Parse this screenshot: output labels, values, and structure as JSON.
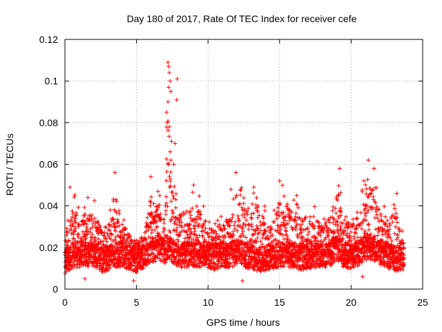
{
  "chart_data": {
    "type": "scatter",
    "title": "Day 180 of 2017, Rate Of TEC Index for receiver cefe",
    "xlabel": "GPS time / hours",
    "ylabel": "ROTI / TECUs",
    "xlim": [
      0,
      25
    ],
    "ylim": [
      0,
      0.12
    ],
    "grid": true,
    "marker": "+",
    "color": "#ff0000",
    "xticks": [
      0,
      5,
      10,
      15,
      20,
      25
    ],
    "xtick_labels": [
      "0",
      "5",
      "10",
      "15",
      "20",
      "25"
    ],
    "yticks": [
      0,
      0.02,
      0.04,
      0.06,
      0.08,
      0.1,
      0.12
    ],
    "ytick_labels": [
      "0",
      "0.02",
      "0.04",
      "0.06",
      "0.08",
      "0.1",
      "0.12"
    ],
    "envelope": {
      "description": "approximate ROTI profile read from the dense scatter (hour, typical baseline, upper envelope)",
      "hours": [
        0,
        0.5,
        1,
        1.5,
        2,
        2.5,
        3,
        3.5,
        4,
        4.5,
        5,
        5.5,
        6,
        6.5,
        7,
        7.2,
        7.5,
        8,
        8.5,
        9,
        9.5,
        10,
        10.5,
        11,
        11.5,
        12,
        12.5,
        13,
        13.5,
        14,
        14.5,
        15,
        15.5,
        16,
        16.5,
        17,
        17.5,
        18,
        18.5,
        19,
        19.5,
        20,
        20.5,
        21,
        21.5,
        22,
        22.5,
        23,
        23.5
      ],
      "baseline": [
        0.013,
        0.016,
        0.016,
        0.017,
        0.016,
        0.014,
        0.015,
        0.016,
        0.017,
        0.015,
        0.014,
        0.016,
        0.018,
        0.02,
        0.018,
        0.02,
        0.018,
        0.016,
        0.016,
        0.017,
        0.016,
        0.016,
        0.015,
        0.017,
        0.016,
        0.018,
        0.017,
        0.015,
        0.014,
        0.015,
        0.015,
        0.017,
        0.016,
        0.016,
        0.015,
        0.016,
        0.016,
        0.016,
        0.017,
        0.02,
        0.016,
        0.016,
        0.017,
        0.02,
        0.02,
        0.018,
        0.016,
        0.015,
        0.014
      ],
      "upper": [
        0.03,
        0.049,
        0.04,
        0.042,
        0.044,
        0.035,
        0.035,
        0.056,
        0.036,
        0.03,
        0.025,
        0.03,
        0.054,
        0.047,
        0.044,
        0.109,
        0.07,
        0.045,
        0.04,
        0.05,
        0.045,
        0.035,
        0.033,
        0.04,
        0.04,
        0.056,
        0.046,
        0.045,
        0.049,
        0.04,
        0.035,
        0.052,
        0.048,
        0.046,
        0.04,
        0.038,
        0.04,
        0.037,
        0.04,
        0.058,
        0.045,
        0.035,
        0.04,
        0.062,
        0.058,
        0.045,
        0.04,
        0.046,
        0.03
      ]
    },
    "highlights": [
      {
        "x": 7.2,
        "y": 0.109
      },
      {
        "x": 7.25,
        "y": 0.107
      },
      {
        "x": 7.3,
        "y": 0.104
      },
      {
        "x": 7.35,
        "y": 0.1
      },
      {
        "x": 7.25,
        "y": 0.097
      },
      {
        "x": 7.4,
        "y": 0.095
      },
      {
        "x": 7.85,
        "y": 0.101
      },
      {
        "x": 7.8,
        "y": 0.091
      },
      {
        "x": 7.2,
        "y": 0.09
      },
      {
        "x": 7.1,
        "y": 0.085
      },
      {
        "x": 7.15,
        "y": 0.08
      },
      {
        "x": 7.3,
        "y": 0.078
      },
      {
        "x": 7.45,
        "y": 0.071
      },
      {
        "x": 7.7,
        "y": 0.07
      },
      {
        "x": 7.35,
        "y": 0.066
      },
      {
        "x": 7.4,
        "y": 0.062
      },
      {
        "x": 7.6,
        "y": 0.06
      },
      {
        "x": 3.5,
        "y": 0.056
      },
      {
        "x": 6.0,
        "y": 0.054
      },
      {
        "x": 11.95,
        "y": 0.056
      },
      {
        "x": 15.0,
        "y": 0.052
      },
      {
        "x": 19.2,
        "y": 0.058
      },
      {
        "x": 21.2,
        "y": 0.062
      },
      {
        "x": 21.6,
        "y": 0.058
      },
      {
        "x": 9.0,
        "y": 0.05
      },
      {
        "x": 0.35,
        "y": 0.049
      },
      {
        "x": 1.6,
        "y": 0.044
      },
      {
        "x": 6.5,
        "y": 0.047
      },
      {
        "x": 11.6,
        "y": 0.048
      },
      {
        "x": 13.2,
        "y": 0.049
      },
      {
        "x": 16.2,
        "y": 0.045
      },
      {
        "x": 23.2,
        "y": 0.046
      },
      {
        "x": 4.8,
        "y": 0.004
      },
      {
        "x": 1.4,
        "y": 0.005
      },
      {
        "x": 12.4,
        "y": 0.004
      },
      {
        "x": 20.8,
        "y": 0.006
      }
    ]
  }
}
